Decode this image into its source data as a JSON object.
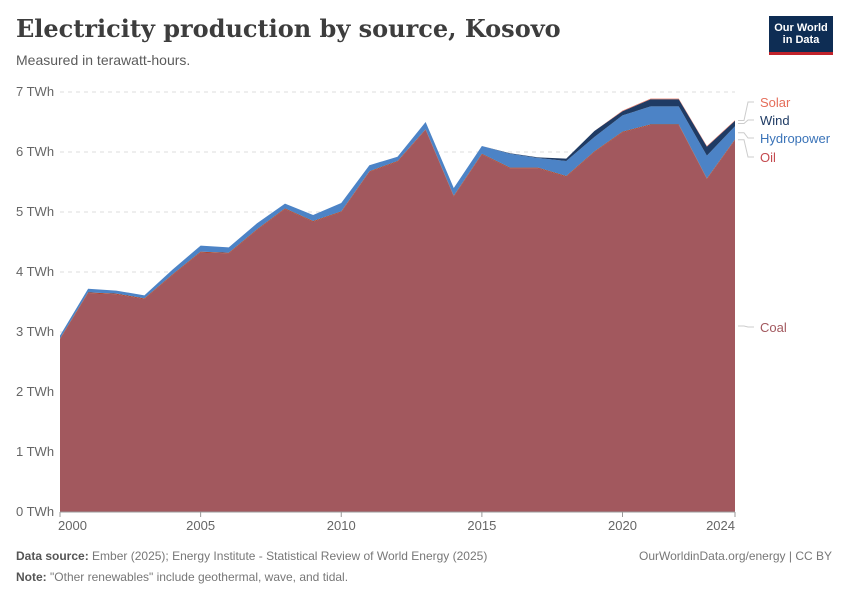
{
  "header": {
    "title": "Electricity production by source, Kosovo",
    "subtitle": "Measured in terawatt-hours.",
    "logo_line1": "Our World",
    "logo_line2": "in Data"
  },
  "footer": {
    "source_label": "Data source:",
    "source_text": "Ember (2025); Energy Institute - Statistical Review of World Energy (2025)",
    "note_label": "Note:",
    "note_text": "\"Other renewables\" include geothermal, wave, and tidal.",
    "license": "OurWorldinData.org/energy | CC BY"
  },
  "chart_data": {
    "type": "area",
    "stacked": true,
    "title": "Electricity production by source, Kosovo",
    "ylabel": "TWh",
    "unit": "TWh",
    "ylim": [
      0,
      7
    ],
    "y_ticks": [
      0,
      1,
      2,
      3,
      4,
      5,
      6,
      7
    ],
    "y_tick_labels": [
      "0 TWh",
      "1 TWh",
      "2 TWh",
      "3 TWh",
      "4 TWh",
      "5 TWh",
      "6 TWh",
      "7 TWh"
    ],
    "x_ticks": [
      2000,
      2005,
      2010,
      2015,
      2020,
      2024
    ],
    "x_tick_labels": [
      "2000",
      "2005",
      "2010",
      "2015",
      "2020",
      "2024"
    ],
    "x": [
      2000,
      2001,
      2002,
      2003,
      2004,
      2005,
      2006,
      2007,
      2008,
      2009,
      2010,
      2011,
      2012,
      2013,
      2014,
      2015,
      2016,
      2017,
      2018,
      2019,
      2020,
      2021,
      2022,
      2023,
      2024
    ],
    "series": [
      {
        "name": "Coal",
        "color": "#a2585e",
        "values": [
          2.88,
          3.65,
          3.63,
          3.55,
          3.95,
          4.33,
          4.31,
          4.7,
          5.05,
          4.84,
          5.0,
          5.67,
          5.84,
          6.37,
          5.26,
          5.96,
          5.73,
          5.73,
          5.59,
          6.0,
          6.33,
          6.45,
          6.45,
          5.55,
          6.2
        ]
      },
      {
        "name": "Oil",
        "color": "#b13507",
        "values": [
          0.01,
          0.01,
          0.01,
          0.01,
          0.01,
          0.01,
          0.01,
          0.01,
          0.01,
          0.01,
          0.01,
          0.01,
          0.01,
          0.01,
          0.01,
          0.01,
          0.01,
          0.01,
          0.01,
          0.01,
          0.01,
          0.01,
          0.01,
          0.01,
          0.01
        ]
      },
      {
        "name": "Hydropower",
        "color": "#4c83c6",
        "values": [
          0.05,
          0.06,
          0.05,
          0.05,
          0.08,
          0.1,
          0.09,
          0.1,
          0.08,
          0.1,
          0.14,
          0.1,
          0.07,
          0.12,
          0.13,
          0.13,
          0.23,
          0.16,
          0.25,
          0.24,
          0.27,
          0.3,
          0.3,
          0.38,
          0.22
        ]
      },
      {
        "name": "Wind",
        "color": "#1f3b64",
        "values": [
          0,
          0,
          0,
          0,
          0,
          0,
          0,
          0,
          0,
          0,
          0,
          0,
          0,
          0,
          0,
          0,
          0.01,
          0.01,
          0.04,
          0.1,
          0.07,
          0.12,
          0.12,
          0.15,
          0.09
        ]
      },
      {
        "name": "Solar",
        "color": "#e56e5a",
        "values": [
          0,
          0,
          0,
          0,
          0,
          0,
          0,
          0,
          0,
          0,
          0,
          0,
          0,
          0,
          0,
          0,
          0,
          0,
          0,
          0,
          0.01,
          0.01,
          0.01,
          0.01,
          0.01
        ]
      }
    ],
    "legend": [
      {
        "name": "Solar",
        "color": "#e56e5a"
      },
      {
        "name": "Wind",
        "color": "#1f3b64"
      },
      {
        "name": "Hydropower",
        "color": "#3a73b8"
      },
      {
        "name": "Oil",
        "color": "#c44a4f"
      },
      {
        "name": "Coal",
        "color": "#a2585e"
      }
    ],
    "legend_placement": "right"
  }
}
